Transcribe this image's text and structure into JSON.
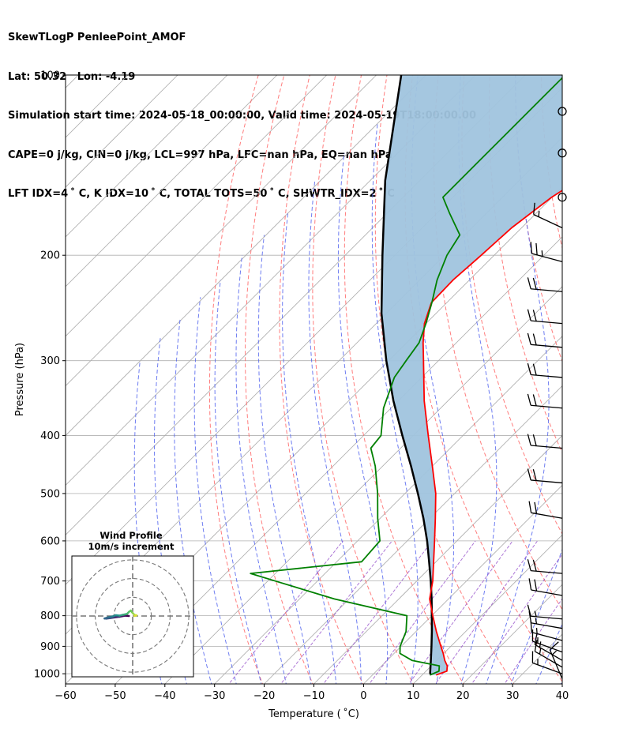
{
  "header": {
    "line1": "SkewTLogP PenleePoint_AMOF",
    "line2": "Lat: 50.32   Lon: -4.19",
    "line3": "Simulation start time: 2024-05-18_00:00:00, Valid time: 2024-05-19T18:00:00.00",
    "line4": "CAPE=0 j/kg, CIN=0 j/kg, LCL=997 hPa, LFC=nan hPa, EQ=nan hPa",
    "line5": "LFT IDX=4 ˚ C, K IDX=10 ˚ C, TOTAL TOTS=50 ˚ C, SHWTR_IDX=2 ˚ C"
  },
  "colors": {
    "temperature": "#ff0000",
    "dewpoint": "#008000",
    "parcel": "#000000",
    "shade": "#a0c4de",
    "dry_adiabat": "#ff6666",
    "moist_adiabat": "#5566ee",
    "mixing_ratio": "#9955cc",
    "isotherm": "#aaaaaa"
  },
  "chart_data": {
    "type": "line",
    "title": "SkewTLogP PenleePoint_AMOF",
    "xlabel": "Temperature ( ˚C)",
    "ylabel": "Pressure (hPa)",
    "xlim": [
      -60,
      40
    ],
    "ylim": [
      1040,
      100
    ],
    "y_scale": "log",
    "skew": "45deg isotherms",
    "grid": true,
    "x_ticks": [
      -60,
      -50,
      -40,
      -30,
      -20,
      -10,
      0,
      10,
      20,
      30,
      40
    ],
    "x_tick_labels": [
      "−60",
      "−50",
      "−40",
      "−30",
      "−20",
      "−10",
      "0",
      "10",
      "20",
      "30",
      "40"
    ],
    "y_ticks": [
      1000,
      900,
      800,
      700,
      600,
      500,
      400,
      300,
      200,
      100
    ],
    "y_tick_labels": [
      "1000",
      "900",
      "800",
      "700",
      "600",
      "500",
      "400",
      "300",
      "200",
      "100"
    ],
    "series": [
      {
        "name": "temperature",
        "pressure": [
          1005,
          990,
          970,
          950,
          925,
          900,
          850,
          800,
          750,
          700,
          650,
          600,
          550,
          500,
          450,
          400,
          350,
          300,
          280,
          260,
          240,
          220,
          200,
          180,
          160,
          150,
          140,
          130,
          120,
          110,
          100
        ],
        "temp": [
          12.8,
          14.2,
          13.2,
          11.6,
          9.9,
          8.0,
          4.1,
          0.2,
          -3.8,
          -6.8,
          -10.5,
          -14.5,
          -18.9,
          -23.8,
          -30.0,
          -37.0,
          -44.8,
          -53.0,
          -56.7,
          -60.3,
          -63.1,
          -63.3,
          -62.6,
          -62.0,
          -60.1,
          -58.2,
          -57.6,
          -58.2,
          -57.7,
          -56.6,
          -56.3
        ]
      },
      {
        "name": "dewpoint",
        "pressure": [
          1005,
          990,
          970,
          950,
          925,
          900,
          850,
          800,
          750,
          700,
          680,
          650,
          600,
          550,
          500,
          450,
          420,
          400,
          360,
          320,
          300,
          280,
          260,
          240,
          220,
          200,
          185,
          170,
          160,
          140,
          120,
          100
        ],
        "temp": [
          11.6,
          12.6,
          11.6,
          5.0,
          1.2,
          -0.2,
          -2.0,
          -5.0,
          -23.0,
          -38.5,
          -45.0,
          -25.0,
          -25.5,
          -30.5,
          -35.5,
          -41.5,
          -46.0,
          -46.5,
          -51.5,
          -55.5,
          -56.5,
          -57.5,
          -60.0,
          -63.0,
          -66.5,
          -69.5,
          -71.0,
          -77.5,
          -82.0,
          -82.0,
          -82.0,
          -82.0
        ]
      },
      {
        "name": "parcel",
        "pressure": [
          1005,
          1000,
          997,
          950,
          900,
          850,
          800,
          750,
          700,
          650,
          600,
          550,
          500,
          450,
          400,
          350,
          300,
          250,
          200,
          150,
          100
        ],
        "temp": [
          11.8,
          11.4,
          11.2,
          8.8,
          6.1,
          3.2,
          0.0,
          -3.4,
          -7.2,
          -11.4,
          -16.0,
          -21.3,
          -27.4,
          -34.3,
          -42.2,
          -51.0,
          -60.5,
          -71.0,
          -82.5,
          -97.0,
          -115.0
        ]
      }
    ],
    "inset": {
      "title_line1": "Wind Profile",
      "title_line2": "10m/s increment",
      "rings_ms": [
        10,
        20,
        30
      ],
      "hodograph_uv": [
        [
          -2,
          0
        ],
        [
          -4,
          0.2
        ],
        [
          -7,
          -0.4
        ],
        [
          -10,
          -0.8
        ],
        [
          -12,
          -1.1
        ],
        [
          -14,
          -1.4
        ],
        [
          -15,
          -1.3
        ],
        [
          -13,
          -0.7
        ],
        [
          -11,
          -0.3
        ],
        [
          -9,
          0.4
        ],
        [
          -7,
          0.2
        ],
        [
          -5,
          0.7
        ],
        [
          -3,
          1.1
        ],
        [
          -2,
          2.2
        ],
        [
          -1,
          2.9
        ],
        [
          0,
          1.6
        ],
        [
          1,
          0.6
        ],
        [
          2,
          0.4
        ],
        [
          1,
          0
        ]
      ]
    },
    "wind_barbs": [
      {
        "pressure": 1020,
        "calm": false,
        "dir": 337,
        "speed": 15
      },
      {
        "pressure": 1000,
        "calm": false,
        "dir": 290,
        "speed": 15
      },
      {
        "pressure": 975,
        "calm": false,
        "dir": 300,
        "speed": 15
      },
      {
        "pressure": 950,
        "calm": false,
        "dir": 300,
        "speed": 15
      },
      {
        "pressure": 920,
        "calm": false,
        "dir": 290,
        "speed": 15
      },
      {
        "pressure": 880,
        "calm": false,
        "dir": 285,
        "speed": 15
      },
      {
        "pressure": 840,
        "calm": false,
        "dir": 280,
        "speed": 15
      },
      {
        "pressure": 810,
        "calm": false,
        "dir": 275,
        "speed": 15
      },
      {
        "pressure": 740,
        "calm": false,
        "dir": 280,
        "speed": 20
      },
      {
        "pressure": 680,
        "calm": false,
        "dir": 275,
        "speed": 20
      },
      {
        "pressure": 550,
        "calm": false,
        "dir": 280,
        "speed": 20
      },
      {
        "pressure": 480,
        "calm": false,
        "dir": 275,
        "speed": 20
      },
      {
        "pressure": 420,
        "calm": false,
        "dir": 275,
        "speed": 20
      },
      {
        "pressure": 360,
        "calm": false,
        "dir": 275,
        "speed": 20
      },
      {
        "pressure": 320,
        "calm": false,
        "dir": 275,
        "speed": 20
      },
      {
        "pressure": 285,
        "calm": false,
        "dir": 275,
        "speed": 20
      },
      {
        "pressure": 260,
        "calm": false,
        "dir": 275,
        "speed": 20
      },
      {
        "pressure": 230,
        "calm": false,
        "dir": 275,
        "speed": 20
      },
      {
        "pressure": 205,
        "calm": false,
        "dir": 285,
        "speed": 25
      },
      {
        "pressure": 180,
        "calm": false,
        "dir": 295,
        "speed": 15
      },
      {
        "pressure": 160,
        "calm": true
      },
      {
        "pressure": 135,
        "calm": true
      },
      {
        "pressure": 115,
        "calm": true
      }
    ]
  }
}
